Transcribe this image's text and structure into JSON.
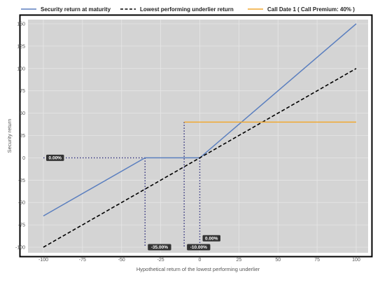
{
  "chart_data": {
    "type": "line",
    "title": "",
    "xlabel": "Hypothetical return of the lowest performing underlier",
    "ylabel": "Security return",
    "xlim": [
      -105,
      105
    ],
    "ylim": [
      -110,
      160
    ],
    "x_ticks": [
      -100,
      -75,
      -50,
      -25,
      0,
      25,
      50,
      75,
      100
    ],
    "y_ticks": [
      -100,
      -75,
      -50,
      -25,
      0,
      25,
      50,
      75,
      100,
      125,
      150
    ],
    "grid": true,
    "legend_position": "top",
    "series": [
      {
        "name": "Security return at maturity",
        "color": "#5b7fbf",
        "style": "solid",
        "points": [
          [
            -100,
            -65
          ],
          [
            -35,
            0
          ],
          [
            0,
            0
          ],
          [
            100,
            150
          ]
        ]
      },
      {
        "name": "Lowest performing underlier return",
        "color": "#000000",
        "style": "dashed",
        "points": [
          [
            -100,
            -100
          ],
          [
            100,
            100
          ]
        ]
      },
      {
        "name": "Call Date 1 ( Call Premium: 40% )",
        "color": "#f0a830",
        "style": "solid",
        "points": [
          [
            -10,
            40
          ],
          [
            100,
            40
          ]
        ]
      }
    ],
    "reference_lines": [
      {
        "color": "#2c2c7a",
        "points": [
          [
            -100,
            0
          ],
          [
            -35,
            0
          ]
        ]
      },
      {
        "color": "#2c2c7a",
        "points": [
          [
            -35,
            0
          ],
          [
            -35,
            -100
          ]
        ]
      },
      {
        "color": "#2c2c7a",
        "points": [
          [
            -10,
            40
          ],
          [
            -10,
            -100
          ]
        ]
      },
      {
        "color": "#2c2c7a",
        "points": [
          [
            0,
            0
          ],
          [
            0,
            -100
          ]
        ]
      }
    ],
    "callouts": [
      {
        "text": "0.00%",
        "x": -100,
        "y": 0
      },
      {
        "text": "-35.00%",
        "x": -35,
        "y": -100
      },
      {
        "text": "-10.00%",
        "x": -10,
        "y": -100
      },
      {
        "text": "0.00%",
        "x": 0,
        "y": -90
      }
    ]
  }
}
